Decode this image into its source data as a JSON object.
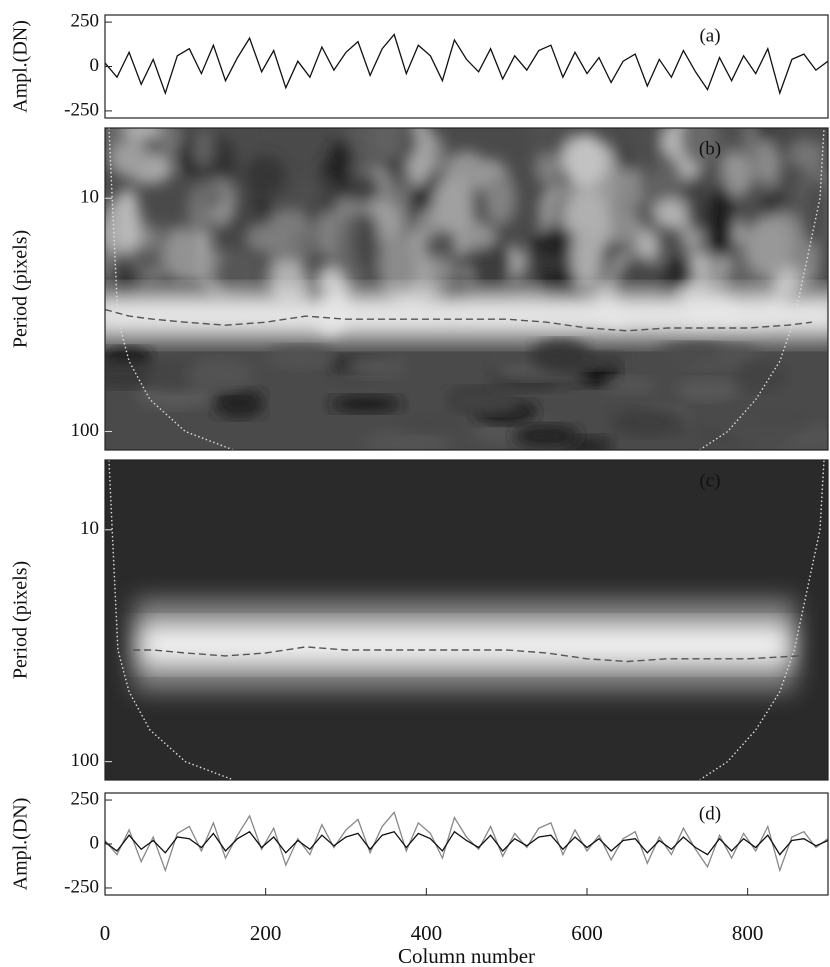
{
  "chart_data": [
    {
      "type": "line",
      "annotation": "(a)",
      "ylabel": "Ampl.(DN)",
      "xlim": [
        0,
        900
      ],
      "ylim": [
        -290,
        290
      ],
      "yticks": [
        250,
        0,
        -250
      ],
      "series": [
        {
          "color": "#111111",
          "style": "solid",
          "x": [
            0,
            15,
            30,
            45,
            60,
            75,
            90,
            105,
            120,
            135,
            150,
            165,
            180,
            195,
            210,
            225,
            240,
            255,
            270,
            285,
            300,
            315,
            330,
            345,
            360,
            375,
            390,
            405,
            420,
            435,
            450,
            465,
            480,
            495,
            510,
            525,
            540,
            555,
            570,
            585,
            600,
            615,
            630,
            645,
            660,
            675,
            690,
            705,
            720,
            735,
            750,
            765,
            780,
            795,
            810,
            825,
            840,
            855,
            870,
            885,
            900
          ],
          "values": [
            20,
            -60,
            80,
            -100,
            40,
            -150,
            60,
            100,
            -40,
            120,
            -80,
            50,
            160,
            -30,
            90,
            -120,
            30,
            -60,
            110,
            -20,
            80,
            140,
            -50,
            100,
            180,
            -40,
            120,
            60,
            -80,
            150,
            40,
            -30,
            100,
            -70,
            60,
            -20,
            90,
            120,
            -60,
            80,
            -40,
            50,
            -90,
            30,
            70,
            -110,
            40,
            -60,
            90,
            -30,
            -130,
            50,
            -80,
            60,
            -40,
            100,
            -150,
            40,
            70,
            -20,
            30
          ]
        }
      ]
    },
    {
      "type": "line",
      "annotation": "(b)",
      "ylabel": "Period (pixels)",
      "log_y": true,
      "y_reversed": true,
      "xlim": [
        0,
        900
      ],
      "ylim": [
        5,
        120
      ],
      "yticks": [
        10,
        100
      ],
      "background": "wavelet-power",
      "series": [
        {
          "color": "#dddddd",
          "style": "dotted",
          "x": [
            5,
            9,
            16,
            30,
            56,
            100,
            160,
            null,
            740,
            775,
            810,
            840,
            858,
            890,
            895
          ],
          "values": [
            5,
            10,
            33,
            50,
            73,
            100,
            120,
            null,
            120,
            100,
            73,
            50,
            33,
            10,
            5
          ]
        },
        {
          "color": "#555555",
          "style": "dashed",
          "x": [
            0,
            30,
            60,
            100,
            150,
            200,
            250,
            300,
            350,
            400,
            450,
            500,
            550,
            600,
            650,
            700,
            750,
            800,
            850,
            880
          ],
          "values": [
            30,
            32,
            33,
            34,
            35,
            34,
            32,
            33,
            33,
            33,
            33,
            33,
            34,
            36,
            37,
            36,
            36,
            36,
            35,
            34
          ]
        }
      ]
    },
    {
      "type": "line",
      "annotation": "(c)",
      "ylabel": "Period (pixels)",
      "log_y": true,
      "y_reversed": true,
      "xlim": [
        0,
        900
      ],
      "ylim": [
        5,
        120
      ],
      "yticks": [
        10,
        100
      ],
      "background": "filtered-power",
      "series": [
        {
          "color": "#dddddd",
          "style": "dotted",
          "x": [
            5,
            9,
            16,
            30,
            56,
            100,
            160,
            null,
            740,
            775,
            810,
            840,
            858,
            890,
            895
          ],
          "values": [
            5,
            10,
            33,
            50,
            73,
            100,
            120,
            null,
            120,
            100,
            73,
            50,
            33,
            10,
            5
          ]
        },
        {
          "color": "#555555",
          "style": "dashed",
          "x": [
            35,
            60,
            100,
            150,
            200,
            250,
            300,
            350,
            400,
            450,
            500,
            550,
            600,
            650,
            700,
            750,
            800,
            865
          ],
          "values": [
            33,
            33,
            34,
            35,
            34,
            32,
            33,
            33,
            33,
            33,
            33,
            34,
            36,
            37,
            36,
            36,
            36,
            35
          ]
        }
      ]
    },
    {
      "type": "line",
      "annotation": "(d)",
      "ylabel": "Ampl.(DN)",
      "xlabel": "Column number",
      "xlim": [
        0,
        900
      ],
      "ylim": [
        -290,
        290
      ],
      "yticks": [
        250,
        0,
        -250
      ],
      "xticks": [
        0,
        200,
        400,
        600,
        800
      ],
      "series": [
        {
          "color": "#888888",
          "style": "solid",
          "x": [
            0,
            15,
            30,
            45,
            60,
            75,
            90,
            105,
            120,
            135,
            150,
            165,
            180,
            195,
            210,
            225,
            240,
            255,
            270,
            285,
            300,
            315,
            330,
            345,
            360,
            375,
            390,
            405,
            420,
            435,
            450,
            465,
            480,
            495,
            510,
            525,
            540,
            555,
            570,
            585,
            600,
            615,
            630,
            645,
            660,
            675,
            690,
            705,
            720,
            735,
            750,
            765,
            780,
            795,
            810,
            825,
            840,
            855,
            870,
            885,
            900
          ],
          "values": [
            20,
            -60,
            80,
            -100,
            40,
            -150,
            60,
            100,
            -40,
            120,
            -80,
            50,
            160,
            -30,
            90,
            -120,
            30,
            -60,
            110,
            -20,
            80,
            140,
            -50,
            100,
            180,
            -40,
            120,
            60,
            -80,
            150,
            40,
            -30,
            100,
            -70,
            60,
            -20,
            90,
            120,
            -60,
            80,
            -40,
            50,
            -90,
            30,
            70,
            -110,
            40,
            -60,
            90,
            -30,
            -130,
            50,
            -80,
            60,
            -40,
            100,
            -150,
            40,
            70,
            -20,
            30
          ]
        },
        {
          "color": "#111111",
          "style": "solid",
          "x": [
            0,
            15,
            30,
            45,
            60,
            75,
            90,
            105,
            120,
            135,
            150,
            165,
            180,
            195,
            210,
            225,
            240,
            255,
            270,
            285,
            300,
            315,
            330,
            345,
            360,
            375,
            390,
            405,
            420,
            435,
            450,
            465,
            480,
            495,
            510,
            525,
            540,
            555,
            570,
            585,
            600,
            615,
            630,
            645,
            660,
            675,
            690,
            705,
            720,
            735,
            750,
            765,
            780,
            795,
            810,
            825,
            840,
            855,
            870,
            885,
            900
          ],
          "values": [
            10,
            -40,
            50,
            -30,
            20,
            -50,
            40,
            30,
            -20,
            60,
            -40,
            30,
            70,
            -20,
            40,
            -50,
            20,
            -30,
            50,
            -10,
            40,
            60,
            -30,
            50,
            70,
            -20,
            60,
            30,
            -40,
            70,
            20,
            -20,
            50,
            -40,
            30,
            -10,
            40,
            50,
            -30,
            40,
            -20,
            30,
            -40,
            20,
            30,
            -50,
            20,
            -30,
            40,
            -20,
            -60,
            30,
            -40,
            30,
            -20,
            50,
            -60,
            20,
            30,
            -10,
            20
          ]
        }
      ]
    }
  ]
}
